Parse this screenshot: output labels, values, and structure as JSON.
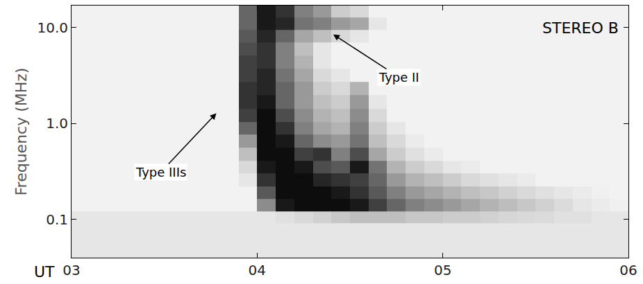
{
  "chart_data": {
    "type": "heatmap",
    "title": "STEREO B",
    "xlabel": "UT",
    "ylabel": "Frequency (MHz)",
    "log": "y",
    "grid": false,
    "xlim": [
      3,
      6
    ],
    "xticks": [
      {
        "value": 3,
        "label": "03"
      },
      {
        "value": 4,
        "label": "04"
      },
      {
        "value": 5,
        "label": "05"
      },
      {
        "value": 6,
        "label": "06"
      }
    ],
    "ylim": [
      0.04,
      17
    ],
    "yticks": [
      0.1,
      {
        "value": 1,
        "label": "1.0"
      },
      {
        "value": 10,
        "label": "10.0"
      }
    ],
    "zlim": [
      0,
      100
    ],
    "x": [
      3.05,
      3.15,
      3.25,
      3.35,
      3.45,
      3.55,
      3.65,
      3.75,
      3.85,
      3.95,
      4.05,
      4.15,
      4.25,
      4.35,
      4.45,
      4.55,
      4.65,
      4.75,
      4.85,
      4.95,
      5.05,
      5.15,
      5.25,
      5.35,
      5.45,
      5.55,
      5.65,
      5.75,
      5.85,
      5.95
    ],
    "y": [
      0.045,
      0.06,
      0.08,
      0.105,
      0.14,
      0.19,
      0.26,
      0.35,
      0.48,
      0.65,
      0.9,
      1.2,
      1.7,
      2.3,
      3.2,
      4.4,
      6,
      8.2,
      11,
      15
    ],
    "z": [
      [
        10,
        10,
        10,
        10,
        10,
        10,
        10,
        10,
        10,
        10,
        10,
        10,
        10,
        10,
        10,
        10,
        10,
        10,
        10,
        10,
        10,
        10,
        10,
        10,
        10,
        10,
        10,
        10,
        10,
        10
      ],
      [
        10,
        10,
        10,
        10,
        10,
        10,
        10,
        10,
        10,
        10,
        10,
        10,
        10,
        10,
        10,
        10,
        10,
        10,
        10,
        10,
        10,
        10,
        10,
        10,
        10,
        10,
        10,
        10,
        10,
        10
      ],
      [
        10,
        10,
        10,
        10,
        10,
        10,
        10,
        10,
        10,
        10,
        10,
        10,
        10,
        10,
        10,
        10,
        10,
        10,
        10,
        10,
        10,
        10,
        10,
        10,
        10,
        10,
        10,
        10,
        10,
        10
      ],
      [
        10,
        10,
        10,
        10,
        10,
        10,
        10,
        10,
        10,
        10,
        10,
        12,
        15,
        18,
        22,
        25,
        25,
        25,
        22,
        22,
        20,
        20,
        18,
        16,
        15,
        14,
        12,
        12,
        10,
        10
      ],
      [
        5,
        5,
        5,
        5,
        5,
        5,
        5,
        5,
        5,
        5,
        45,
        90,
        95,
        95,
        95,
        90,
        75,
        60,
        50,
        45,
        40,
        35,
        30,
        26,
        22,
        18,
        14,
        10,
        8,
        6
      ],
      [
        5,
        5,
        5,
        5,
        5,
        5,
        5,
        5,
        5,
        5,
        65,
        95,
        95,
        95,
        90,
        80,
        65,
        50,
        40,
        35,
        30,
        25,
        22,
        18,
        15,
        12,
        10,
        8,
        6,
        5
      ],
      [
        5,
        5,
        5,
        5,
        5,
        5,
        5,
        5,
        5,
        10,
        80,
        95,
        95,
        85,
        80,
        75,
        60,
        40,
        30,
        25,
        20,
        15,
        12,
        10,
        8,
        5,
        5,
        5,
        5,
        5
      ],
      [
        5,
        5,
        5,
        5,
        5,
        5,
        5,
        5,
        5,
        15,
        90,
        95,
        90,
        70,
        65,
        90,
        55,
        30,
        20,
        15,
        10,
        8,
        5,
        5,
        5,
        5,
        5,
        5,
        5,
        5
      ],
      [
        5,
        5,
        5,
        5,
        5,
        5,
        5,
        5,
        5,
        25,
        95,
        95,
        75,
        80,
        50,
        70,
        35,
        20,
        12,
        8,
        5,
        5,
        5,
        5,
        5,
        5,
        5,
        5,
        5,
        5
      ],
      [
        5,
        5,
        5,
        5,
        5,
        5,
        5,
        5,
        5,
        40,
        95,
        90,
        60,
        45,
        40,
        55,
        25,
        15,
        8,
        5,
        5,
        5,
        5,
        5,
        5,
        5,
        5,
        5,
        5,
        5
      ],
      [
        5,
        5,
        5,
        5,
        5,
        5,
        5,
        5,
        5,
        60,
        95,
        80,
        50,
        35,
        30,
        50,
        20,
        10,
        5,
        5,
        5,
        5,
        5,
        5,
        5,
        5,
        5,
        5,
        5,
        5
      ],
      [
        5,
        5,
        5,
        5,
        5,
        5,
        5,
        5,
        5,
        75,
        95,
        70,
        45,
        30,
        25,
        45,
        15,
        5,
        5,
        5,
        5,
        5,
        5,
        5,
        5,
        5,
        5,
        5,
        5,
        5
      ],
      [
        5,
        5,
        5,
        5,
        5,
        5,
        5,
        5,
        5,
        80,
        90,
        60,
        40,
        25,
        20,
        40,
        10,
        5,
        5,
        5,
        5,
        5,
        5,
        5,
        5,
        5,
        5,
        5,
        5,
        5
      ],
      [
        5,
        5,
        5,
        5,
        5,
        5,
        5,
        5,
        5,
        80,
        85,
        60,
        40,
        20,
        15,
        30,
        5,
        5,
        5,
        5,
        5,
        5,
        5,
        5,
        5,
        5,
        5,
        5,
        5,
        5
      ],
      [
        5,
        5,
        5,
        5,
        5,
        5,
        5,
        5,
        5,
        75,
        85,
        55,
        35,
        15,
        10,
        5,
        5,
        5,
        5,
        5,
        5,
        5,
        5,
        5,
        5,
        5,
        5,
        5,
        5,
        5
      ],
      [
        5,
        5,
        5,
        5,
        5,
        5,
        5,
        5,
        5,
        75,
        80,
        50,
        30,
        10,
        5,
        5,
        5,
        5,
        5,
        5,
        5,
        5,
        5,
        5,
        5,
        5,
        5,
        5,
        5,
        5
      ],
      [
        5,
        5,
        5,
        5,
        5,
        5,
        5,
        5,
        5,
        70,
        80,
        50,
        25,
        10,
        5,
        5,
        5,
        5,
        5,
        5,
        5,
        5,
        5,
        5,
        5,
        5,
        5,
        5,
        5,
        5
      ],
      [
        5,
        5,
        5,
        5,
        5,
        5,
        5,
        5,
        5,
        65,
        85,
        60,
        35,
        25,
        15,
        10,
        5,
        5,
        5,
        5,
        5,
        5,
        5,
        5,
        5,
        5,
        5,
        5,
        5,
        5
      ],
      [
        5,
        5,
        5,
        5,
        5,
        5,
        5,
        5,
        5,
        60,
        90,
        85,
        55,
        50,
        40,
        35,
        10,
        5,
        5,
        5,
        5,
        5,
        5,
        5,
        5,
        5,
        5,
        5,
        5,
        5
      ],
      [
        5,
        5,
        5,
        5,
        5,
        5,
        5,
        5,
        5,
        60,
        90,
        80,
        50,
        40,
        20,
        15,
        5,
        5,
        5,
        5,
        5,
        5,
        5,
        5,
        5,
        5,
        5,
        5,
        5,
        5
      ]
    ],
    "annotations": [
      {
        "text": "Type IIIs",
        "x": 3.78,
        "y": 1.28
      },
      {
        "text": "Type II",
        "x": 4.41,
        "y": 8.5
      }
    ]
  }
}
